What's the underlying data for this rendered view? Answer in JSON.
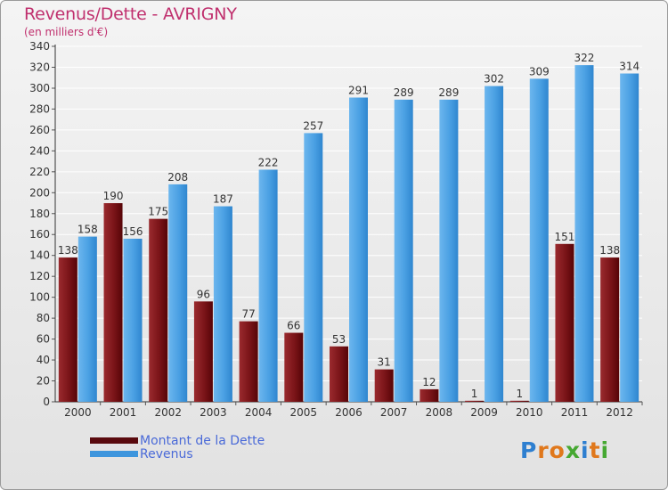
{
  "header": {
    "title": "Revenus/Dette - AVRIGNY",
    "subtitle": "(en milliers d'€)"
  },
  "chart_data": {
    "type": "bar",
    "title": "Revenus/Dette - AVRIGNY",
    "ylabel": "(en milliers d'€)",
    "xlabel": "",
    "categories": [
      "2000",
      "2001",
      "2002",
      "2003",
      "2004",
      "2005",
      "2006",
      "2007",
      "2008",
      "2009",
      "2010",
      "2011",
      "2012"
    ],
    "series": [
      {
        "name": "Montant de la Dette",
        "color": "#7a1418",
        "values": [
          138,
          190,
          175,
          96,
          77,
          66,
          53,
          31,
          12,
          1,
          1,
          151,
          138
        ]
      },
      {
        "name": "Revenus",
        "color": "#3d95dd",
        "values": [
          158,
          156,
          208,
          187,
          222,
          257,
          291,
          289,
          289,
          302,
          309,
          322,
          314
        ]
      }
    ],
    "ylim": [
      0,
      340
    ],
    "yticks": [
      0,
      20,
      40,
      60,
      80,
      100,
      120,
      140,
      160,
      180,
      200,
      220,
      240,
      260,
      280,
      300,
      320,
      340
    ],
    "grid": true,
    "legend": "bottom-left"
  },
  "legend": {
    "items": [
      {
        "label": "Montant de la Dette",
        "color": "#5a0a0e"
      },
      {
        "label": "Revenus",
        "color": "#3d95dd"
      }
    ]
  },
  "logo": {
    "letters": [
      "P",
      "r",
      "o",
      "x",
      "i",
      "t",
      "i"
    ],
    "colors": [
      "#2e7fd0",
      "#e0781c",
      "#e0781c",
      "#46a832",
      "#2e7fd0",
      "#e0781c",
      "#46a832"
    ]
  }
}
